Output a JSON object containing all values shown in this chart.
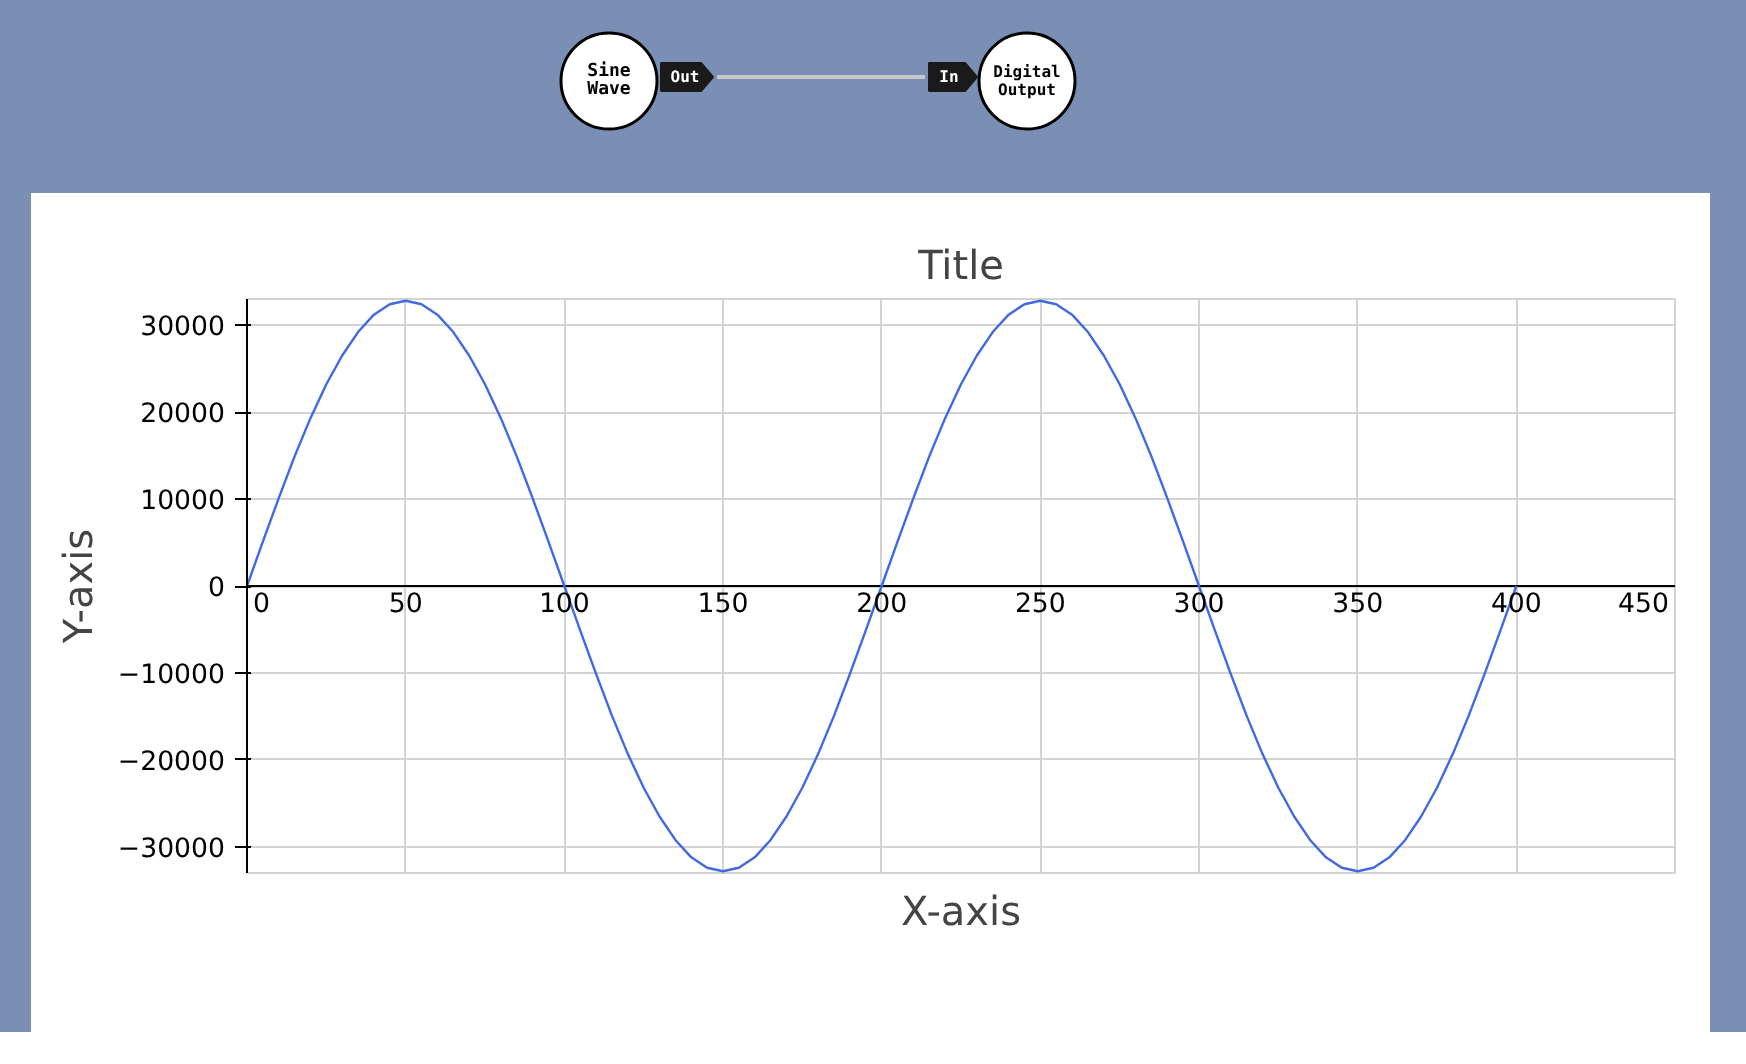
{
  "chart_data": {
    "type": "line",
    "title": "Title",
    "xlabel": "X-axis",
    "ylabel": "Y-axis",
    "annotations": [
      "Sine Wave",
      "Out",
      "In",
      "Digital Output"
    ],
    "x": [
      0,
      5,
      10,
      15,
      20,
      25,
      30,
      35,
      40,
      45,
      50,
      55,
      60,
      65,
      70,
      75,
      80,
      85,
      90,
      95,
      100,
      105,
      110,
      115,
      120,
      125,
      130,
      135,
      140,
      145,
      150,
      155,
      160,
      165,
      170,
      175,
      180,
      185,
      190,
      195,
      200,
      205,
      210,
      215,
      220,
      225,
      230,
      235,
      240,
      245,
      250,
      255,
      260,
      265,
      270,
      275,
      280,
      285,
      290,
      295,
      300,
      305,
      310,
      315,
      320,
      325,
      330,
      335,
      340,
      345,
      350,
      355,
      360,
      365,
      370,
      375,
      380,
      385,
      390,
      395,
      400
    ],
    "series": [
      {
        "color": "#4169e1",
        "values": [
          0,
          5100,
          10100,
          14900,
          19300,
          23200,
          26500,
          29200,
          31200,
          32400,
          32800,
          32400,
          31200,
          29200,
          26500,
          23200,
          19300,
          14900,
          10100,
          5100,
          0,
          -5100,
          -10100,
          -14900,
          -19300,
          -23200,
          -26500,
          -29200,
          -31200,
          -32400,
          -32800,
          -32400,
          -31200,
          -29200,
          -26500,
          -23200,
          -19300,
          -14900,
          -10100,
          -5100,
          0,
          5100,
          10100,
          14900,
          19300,
          23200,
          26500,
          29200,
          31200,
          32400,
          32800,
          32400,
          31200,
          29200,
          26500,
          23200,
          19300,
          14900,
          10100,
          5100,
          0,
          -5100,
          -10100,
          -14900,
          -19300,
          -23200,
          -26500,
          -29200,
          -31200,
          -32400,
          -32800,
          -32400,
          -31200,
          -29200,
          -26500,
          -23200,
          -19300,
          -14900,
          -10100,
          -5100,
          0
        ]
      }
    ],
    "xlim": [
      0,
      450
    ],
    "xticks": [
      0,
      50,
      100,
      150,
      200,
      250,
      300,
      350,
      400,
      450
    ],
    "ylim": [
      -33000,
      33000
    ],
    "yticks": [
      -30000,
      -20000,
      -10000,
      0,
      10000,
      20000,
      30000
    ],
    "grid": true,
    "marker": "none",
    "line_style": "solid"
  }
}
